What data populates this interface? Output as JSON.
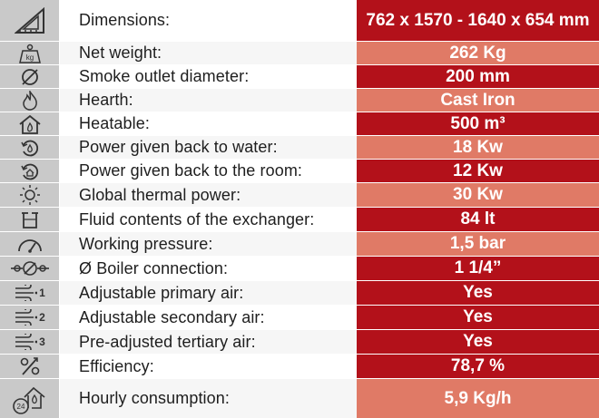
{
  "colors": {
    "dark_value": "#b3111a",
    "light_value": "#e07a66",
    "icon_bg": "#c9c9c9"
  },
  "rows": [
    {
      "icon": "ruler-triangle-icon",
      "label": "Dimensions:",
      "value": "762 x 1570 - 1640 x 654 mm"
    },
    {
      "icon": "weight-kg-icon",
      "icon_text": "kg",
      "label": "Net weight:",
      "value": "262 Kg"
    },
    {
      "icon": "diameter-icon",
      "label": "Smoke outlet diameter:",
      "value": "200 mm"
    },
    {
      "icon": "flame-icon",
      "label": "Hearth:",
      "value": "Cast Iron"
    },
    {
      "icon": "house-flame-icon",
      "label": "Heatable:",
      "value": "500 m³"
    },
    {
      "icon": "water-circulation-icon",
      "label": "Power given back to water:",
      "value": "18 Kw"
    },
    {
      "icon": "room-circulation-icon",
      "label": "Power given back to the room:",
      "value": "12 Kw"
    },
    {
      "icon": "sun-power-icon",
      "label": "Global thermal power:",
      "value": "30 Kw"
    },
    {
      "icon": "exchanger-tank-icon",
      "label": "Fluid contents of the exchanger:",
      "value": "84 lt"
    },
    {
      "icon": "pressure-gauge-icon",
      "label": "Working pressure:",
      "value": "1,5 bar"
    },
    {
      "icon": "boiler-connection-icon",
      "label": "Ø Boiler connection:",
      "value": "1 1/4”"
    },
    {
      "icon": "air-primary-icon",
      "icon_text": "1",
      "label": "Adjustable primary air:",
      "value": "Yes"
    },
    {
      "icon": "air-secondary-icon",
      "icon_text": "2",
      "label": "Adjustable secondary air:",
      "value": "Yes"
    },
    {
      "icon": "air-tertiary-icon",
      "icon_text": "3",
      "label": "Pre-adjusted tertiary air:",
      "value": "Yes"
    },
    {
      "icon": "efficiency-percent-icon",
      "label": "Efficiency:",
      "value": "78,7 %"
    },
    {
      "icon": "consumption-clock-icon",
      "icon_text": "24",
      "label": "Hourly consumption:",
      "value": "5,9 Kg/h"
    }
  ]
}
